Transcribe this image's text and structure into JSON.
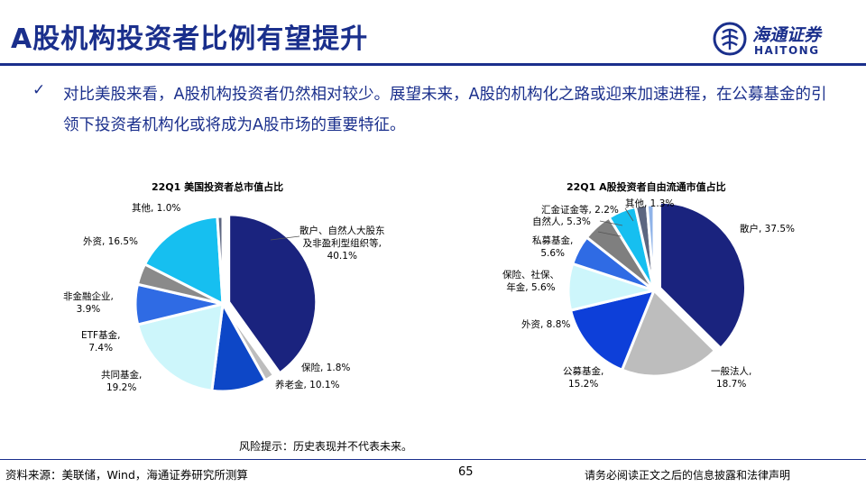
{
  "title": "A股机构投资者比例有望提升",
  "logo": {
    "name_cn": "海通证券",
    "name_en": "HAITONG"
  },
  "bullet": {
    "check": "✓",
    "text": "对比美股来看，A股机构投资者仍然相对较少。展望未来，A股的机构化之路或迎来加速进程，在公募基金的引领下投资者机构化或将成为A股市场的重要特征。"
  },
  "chart_data": [
    {
      "type": "pie",
      "title": "22Q1 美国投资者总市值占比",
      "slices": [
        {
          "label": "散户、自然人大股东及非盈利型组织等",
          "label_lines": [
            "散户、自然人大股东",
            "及非盈利型组织等,",
            "40.1%"
          ],
          "value": 40.1,
          "color": "#1a237e"
        },
        {
          "label": "保险",
          "label_lines": [
            "保险, 1.8%"
          ],
          "value": 1.8,
          "color": "#bdbdbd"
        },
        {
          "label": "养老金",
          "label_lines": [
            "养老金, 10.1%"
          ],
          "value": 10.1,
          "color": "#0d47c7"
        },
        {
          "label": "共同基金",
          "label_lines": [
            "共同基金,",
            "19.2%"
          ],
          "value": 19.2,
          "color": "#cdf6fb"
        },
        {
          "label": "ETF基金",
          "label_lines": [
            "ETF基金,",
            "7.4%"
          ],
          "value": 7.4,
          "color": "#2f6be4"
        },
        {
          "label": "非金融企业",
          "label_lines": [
            "非金融企业,",
            "3.9%"
          ],
          "value": 3.9,
          "color": "#8a8a8a"
        },
        {
          "label": "外资",
          "label_lines": [
            "外资, 16.5%"
          ],
          "value": 16.5,
          "color": "#16bff0"
        },
        {
          "label": "其他",
          "label_lines": [
            "其他, 1.0%"
          ],
          "value": 1.0,
          "color": "#5c6680"
        }
      ]
    },
    {
      "type": "pie",
      "title": "22Q1 A股投资者自由流通市值占比",
      "slices": [
        {
          "label": "散户",
          "label_lines": [
            "散户, 37.5%"
          ],
          "value": 37.5,
          "color": "#1a237e"
        },
        {
          "label": "一般法人",
          "label_lines": [
            "一般法人,",
            "18.7%"
          ],
          "value": 18.7,
          "color": "#bdbdbd"
        },
        {
          "label": "公募基金",
          "label_lines": [
            "公募基金,",
            "15.2%"
          ],
          "value": 15.2,
          "color": "#0d3fd9"
        },
        {
          "label": "外资",
          "label_lines": [
            "外资, 8.8%"
          ],
          "value": 8.8,
          "color": "#cdf6fb"
        },
        {
          "label": "保险、社保、年金",
          "label_lines": [
            "保险、社保、",
            "年金, 5.6%"
          ],
          "value": 5.6,
          "color": "#2f6be4"
        },
        {
          "label": "私募基金",
          "label_lines": [
            "私募基金,",
            "5.6%"
          ],
          "value": 5.6,
          "color": "#7f7f7f"
        },
        {
          "label": "自然人",
          "label_lines": [
            "自然人, 5.3%"
          ],
          "value": 5.3,
          "color": "#16bff0"
        },
        {
          "label": "汇金证金等",
          "label_lines": [
            "汇金证金等, 2.2%"
          ],
          "value": 2.2,
          "color": "#5c6680"
        },
        {
          "label": "其他",
          "label_lines": [
            "其他, 1.3%"
          ],
          "value": 1.3,
          "color": "#8fb3e8"
        }
      ]
    }
  ],
  "risk_note": "风险提示：历史表现并不代表未来。",
  "footer": {
    "source": "资料来源：美联储，Wind，海通证券研究所测算",
    "page": "65",
    "disclaimer": "请务必阅读正文之后的信息披露和法律声明"
  }
}
